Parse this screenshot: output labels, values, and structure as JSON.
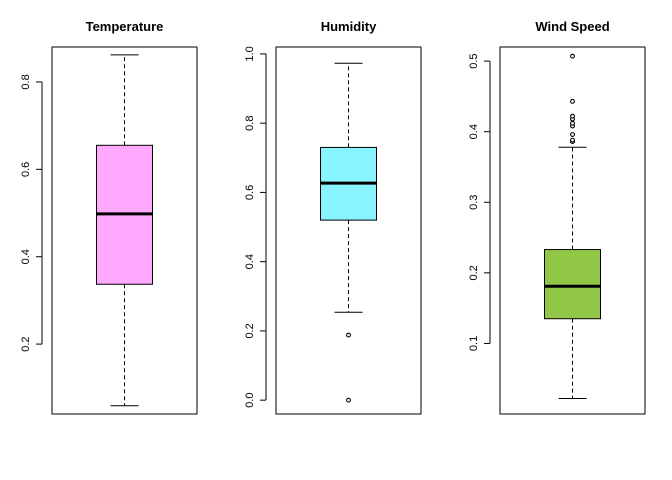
{
  "chart_data": [
    {
      "type": "boxplot",
      "title": "Temperature",
      "fill_color": "#FFAAFF",
      "ylim": [
        0.04,
        0.88
      ],
      "yticks": [
        0.2,
        0.4,
        0.6,
        0.8
      ],
      "tick_labels": [
        "0.2",
        "0.4",
        "0.6",
        "0.8"
      ],
      "whisker_low": 0.059,
      "q1": 0.337,
      "median": 0.498,
      "q3": 0.655,
      "whisker_high": 0.862,
      "outliers": []
    },
    {
      "type": "boxplot",
      "title": "Humidity",
      "fill_color": "#88F4FF",
      "ylim": [
        -0.04,
        1.02
      ],
      "yticks": [
        0.0,
        0.2,
        0.4,
        0.6,
        0.8,
        1.0
      ],
      "tick_labels": [
        "0.0",
        "0.2",
        "0.4",
        "0.6",
        "0.8",
        "1.0"
      ],
      "whisker_low": 0.254,
      "q1": 0.52,
      "median": 0.627,
      "q3": 0.73,
      "whisker_high": 0.973,
      "outliers": [
        0.188,
        0.0
      ]
    },
    {
      "type": "boxplot",
      "title": "Wind Speed",
      "fill_color": "#91C646",
      "ylim": [
        0.0,
        0.52
      ],
      "yticks": [
        0.1,
        0.2,
        0.3,
        0.4,
        0.5
      ],
      "tick_labels": [
        "0.1",
        "0.2",
        "0.3",
        "0.4",
        "0.5"
      ],
      "whisker_low": 0.022,
      "q1": 0.135,
      "median": 0.181,
      "q3": 0.233,
      "whisker_high": 0.378,
      "outliers": [
        0.386,
        0.388,
        0.396,
        0.408,
        0.412,
        0.418,
        0.422,
        0.443,
        0.507
      ]
    }
  ]
}
